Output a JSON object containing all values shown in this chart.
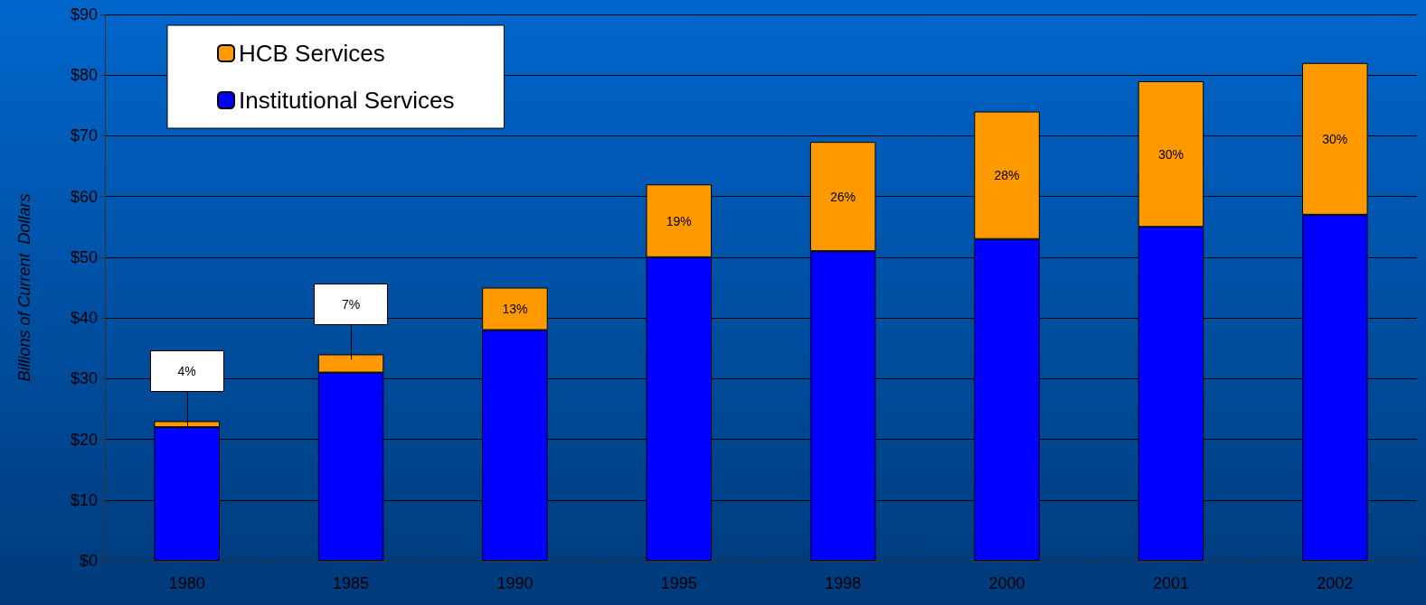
{
  "chart_data": {
    "type": "bar",
    "ylabel": "Billions of Current  Dollars",
    "categories": [
      "1980",
      "1985",
      "1990",
      "1995",
      "1998",
      "2000",
      "2001",
      "2002"
    ],
    "stacked": true,
    "series": [
      {
        "name": "Institutional Services",
        "color": "#0000ff",
        "values": [
          22,
          31,
          38,
          50,
          51,
          53,
          55,
          57
        ]
      },
      {
        "name": "HCB Services",
        "color": "#ff9900",
        "values": [
          1,
          3,
          7,
          12,
          18,
          21,
          24,
          25
        ]
      }
    ],
    "annotations": [
      "4%",
      "7%",
      "13%",
      "19%",
      "26%",
      "28%",
      "30%",
      "30%"
    ],
    "ylim": [
      0,
      90
    ],
    "yticks": [
      {
        "value": 0,
        "label": "$0"
      },
      {
        "value": 10,
        "label": "$10"
      },
      {
        "value": 20,
        "label": "$20"
      },
      {
        "value": 30,
        "label": "$30"
      },
      {
        "value": 40,
        "label": "$40"
      },
      {
        "value": 50,
        "label": "$50"
      },
      {
        "value": 60,
        "label": "$60"
      },
      {
        "value": 70,
        "label": "$70"
      },
      {
        "value": 80,
        "label": "$80"
      },
      {
        "value": 90,
        "label": "$90"
      }
    ],
    "grid": "y",
    "legend": "top left"
  }
}
